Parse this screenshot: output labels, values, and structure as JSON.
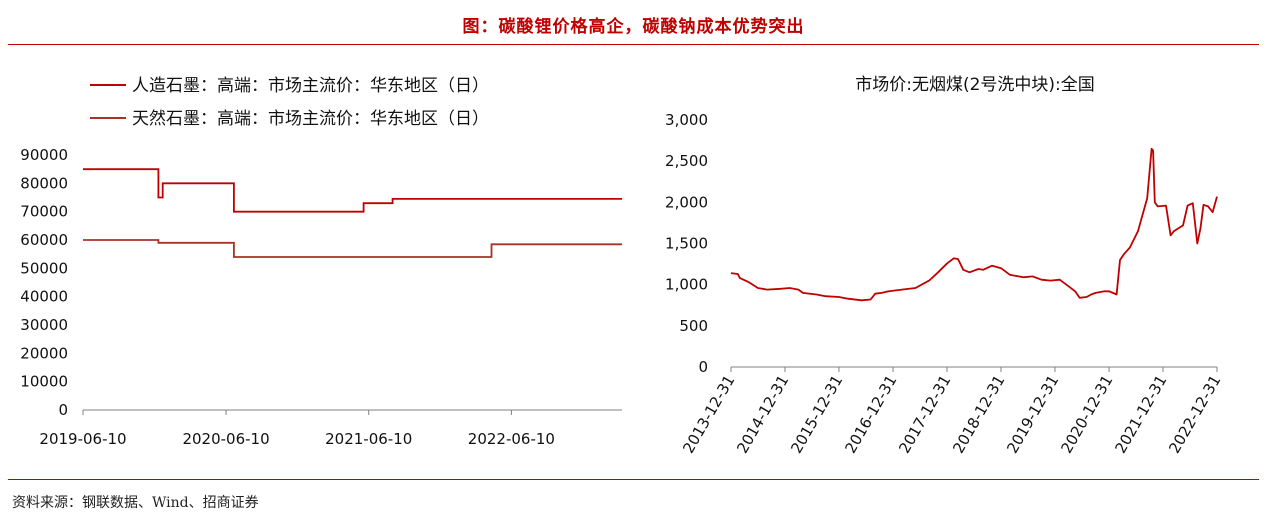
{
  "figure": {
    "title": "图：碳酸锂价格高企，碳酸钠成本优势突出",
    "source": "资料来源：钢联数据、Wind、招商证券"
  },
  "colors": {
    "accent": "#c00000",
    "series_red": "#c00000",
    "series_dark_red": "#a93226",
    "axis": "#808080"
  },
  "chart_data": [
    {
      "type": "line",
      "title": "",
      "xlabel": "",
      "ylabel": "",
      "legend_position": "top-left",
      "grid": false,
      "x_range": [
        "2019-06-10",
        "2023-03-20"
      ],
      "x_ticks": [
        "2019-06-10",
        "2020-06-10",
        "2021-06-10",
        "2022-06-10"
      ],
      "ylim": [
        0,
        90000
      ],
      "y_ticks": [
        0,
        10000,
        20000,
        30000,
        40000,
        50000,
        60000,
        70000,
        80000,
        90000
      ],
      "step": true,
      "series": [
        {
          "name": "人造石墨：高端：市场主流价：华东地区（日）",
          "color": "#c00000",
          "points": [
            [
              "2019-06-10",
              85000
            ],
            [
              "2019-12-20",
              85000
            ],
            [
              "2019-12-20",
              75000
            ],
            [
              "2019-12-31",
              75000
            ],
            [
              "2019-12-31",
              80000
            ],
            [
              "2020-06-30",
              80000
            ],
            [
              "2020-06-30",
              70000
            ],
            [
              "2021-05-28",
              70000
            ],
            [
              "2021-05-28",
              73000
            ],
            [
              "2021-08-10",
              73000
            ],
            [
              "2021-08-10",
              74500
            ],
            [
              "2023-03-20",
              74500
            ]
          ]
        },
        {
          "name": "天然石墨：高端：市场主流价：华东地区（日）",
          "color": "#a93226",
          "points": [
            [
              "2019-06-10",
              60000
            ],
            [
              "2019-12-20",
              60000
            ],
            [
              "2019-12-20",
              59000
            ],
            [
              "2020-06-30",
              59000
            ],
            [
              "2020-06-30",
              54000
            ],
            [
              "2022-04-20",
              54000
            ],
            [
              "2022-04-20",
              58500
            ],
            [
              "2023-03-20",
              58500
            ]
          ]
        }
      ]
    },
    {
      "type": "line",
      "title": "市场价:无烟煤(2号洗中块):全国",
      "xlabel": "",
      "ylabel": "",
      "grid": false,
      "x_range": [
        "2013-12-31",
        "2022-12-31"
      ],
      "x_ticks": [
        "2013-12-31",
        "2014-12-31",
        "2015-12-31",
        "2016-12-31",
        "2017-12-31",
        "2018-12-31",
        "2019-12-31",
        "2020-12-31",
        "2021-12-31",
        "2022-12-31"
      ],
      "ylim": [
        0,
        3000
      ],
      "y_ticks": [
        "0",
        "500",
        "1,000",
        "1,500",
        "2,000",
        "2,500",
        "3,000"
      ],
      "series": [
        {
          "color": "#c00000",
          "points": [
            [
              "2013-12-31",
              1140
            ],
            [
              "2014-02-15",
              1130
            ],
            [
              "2014-03-01",
              1080
            ],
            [
              "2014-05-01",
              1030
            ],
            [
              "2014-07-01",
              960
            ],
            [
              "2014-09-01",
              940
            ],
            [
              "2014-12-01",
              950
            ],
            [
              "2015-02-01",
              960
            ],
            [
              "2015-04-01",
              940
            ],
            [
              "2015-05-01",
              900
            ],
            [
              "2015-08-01",
              880
            ],
            [
              "2015-10-01",
              860
            ],
            [
              "2016-01-01",
              850
            ],
            [
              "2016-03-01",
              830
            ],
            [
              "2016-06-01",
              810
            ],
            [
              "2016-08-01",
              820
            ],
            [
              "2016-09-01",
              890
            ],
            [
              "2016-10-15",
              900
            ],
            [
              "2016-12-01",
              920
            ],
            [
              "2017-03-01",
              940
            ],
            [
              "2017-06-01",
              960
            ],
            [
              "2017-09-01",
              1050
            ],
            [
              "2017-11-01",
              1150
            ],
            [
              "2018-01-01",
              1260
            ],
            [
              "2018-02-15",
              1320
            ],
            [
              "2018-03-15",
              1310
            ],
            [
              "2018-04-20",
              1180
            ],
            [
              "2018-06-01",
              1150
            ],
            [
              "2018-08-01",
              1190
            ],
            [
              "2018-09-01",
              1180
            ],
            [
              "2018-11-01",
              1230
            ],
            [
              "2019-01-01",
              1200
            ],
            [
              "2019-03-01",
              1120
            ],
            [
              "2019-06-01",
              1090
            ],
            [
              "2019-08-01",
              1100
            ],
            [
              "2019-10-01",
              1060
            ],
            [
              "2019-12-01",
              1050
            ],
            [
              "2020-02-01",
              1060
            ],
            [
              "2020-04-01",
              980
            ],
            [
              "2020-05-15",
              920
            ],
            [
              "2020-06-15",
              840
            ],
            [
              "2020-08-01",
              850
            ],
            [
              "2020-09-01",
              880
            ],
            [
              "2020-10-01",
              900
            ],
            [
              "2020-12-01",
              920
            ],
            [
              "2021-01-01",
              920
            ],
            [
              "2021-02-20",
              880
            ],
            [
              "2021-03-15",
              1300
            ],
            [
              "2021-04-10",
              1370
            ],
            [
              "2021-05-20",
              1450
            ],
            [
              "2021-07-15",
              1650
            ],
            [
              "2021-09-15",
              2050
            ],
            [
              "2021-10-15",
              2650
            ],
            [
              "2021-10-25",
              2630
            ],
            [
              "2021-11-05",
              2000
            ],
            [
              "2021-11-25",
              1950
            ],
            [
              "2022-01-20",
              1960
            ],
            [
              "2022-02-20",
              1600
            ],
            [
              "2022-03-15",
              1650
            ],
            [
              "2022-05-15",
              1720
            ],
            [
              "2022-06-15",
              1960
            ],
            [
              "2022-07-20",
              1990
            ],
            [
              "2022-08-20",
              1500
            ],
            [
              "2022-09-10",
              1680
            ],
            [
              "2022-10-01",
              1970
            ],
            [
              "2022-11-01",
              1950
            ],
            [
              "2022-12-01",
              1880
            ],
            [
              "2022-12-31",
              2070
            ]
          ]
        }
      ]
    }
  ]
}
